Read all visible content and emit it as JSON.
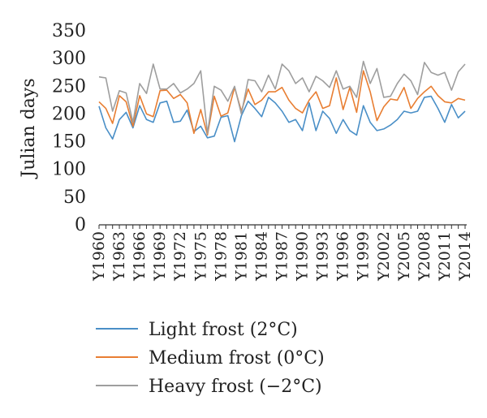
{
  "chart_data": {
    "type": "line",
    "ylabel": "Julian days",
    "ylim": [
      0,
      350
    ],
    "yticks": [
      0,
      50,
      100,
      150,
      200,
      250,
      300,
      350
    ],
    "x": [
      1960,
      1961,
      1962,
      1963,
      1964,
      1965,
      1966,
      1967,
      1968,
      1969,
      1970,
      1971,
      1972,
      1973,
      1974,
      1975,
      1976,
      1977,
      1978,
      1979,
      1980,
      1981,
      1982,
      1983,
      1984,
      1985,
      1986,
      1987,
      1988,
      1989,
      1990,
      1991,
      1992,
      1993,
      1994,
      1995,
      1996,
      1997,
      1998,
      1999,
      2000,
      2001,
      2002,
      2003,
      2004,
      2005,
      2006,
      2007,
      2008,
      2009,
      2010,
      2011,
      2012,
      2013,
      2014
    ],
    "xtick_labels": [
      "Y1960",
      "Y1963",
      "Y1966",
      "Y1969",
      "Y1972",
      "Y1975",
      "Y1978",
      "Y1981",
      "Y1984",
      "Y1987",
      "Y1990",
      "Y1993",
      "Y1996",
      "Y1999",
      "Y2002",
      "Y2005",
      "Y2008",
      "Y2011",
      "Y2014"
    ],
    "grid": false,
    "legend_position": "bottom",
    "series": [
      {
        "name": "Light frost (2°C)",
        "color": "#4a8fc7",
        "values": [
          214,
          175,
          155,
          190,
          203,
          175,
          215,
          190,
          185,
          220,
          223,
          185,
          187,
          207,
          168,
          178,
          157,
          160,
          194,
          197,
          150,
          197,
          223,
          210,
          195,
          230,
          220,
          205,
          185,
          190,
          170,
          220,
          170,
          205,
          192,
          165,
          190,
          170,
          162,
          215,
          185,
          170,
          173,
          180,
          190,
          205,
          202,
          205,
          230,
          232,
          210,
          185,
          217,
          193,
          205
        ]
      },
      {
        "name": "Medium frost (0°C)",
        "color": "#e87e32",
        "values": [
          222,
          210,
          183,
          233,
          222,
          178,
          233,
          200,
          195,
          242,
          243,
          228,
          235,
          220,
          165,
          208,
          162,
          232,
          196,
          202,
          248,
          205,
          245,
          217,
          225,
          240,
          240,
          248,
          225,
          210,
          202,
          225,
          240,
          210,
          215,
          265,
          208,
          248,
          203,
          278,
          240,
          188,
          213,
          227,
          225,
          248,
          210,
          228,
          240,
          250,
          233,
          222,
          220,
          228,
          225
        ]
      },
      {
        "name": "Heavy frost (−2°C)",
        "color": "#9e9e9e",
        "values": [
          267,
          265,
          205,
          242,
          238,
          185,
          255,
          237,
          290,
          245,
          245,
          255,
          238,
          245,
          255,
          278,
          165,
          250,
          243,
          223,
          250,
          200,
          262,
          260,
          240,
          270,
          245,
          290,
          278,
          255,
          265,
          240,
          268,
          260,
          248,
          278,
          245,
          250,
          230,
          295,
          255,
          282,
          230,
          232,
          255,
          272,
          260,
          235,
          293,
          275,
          270,
          275,
          243,
          276,
          290
        ]
      }
    ]
  }
}
